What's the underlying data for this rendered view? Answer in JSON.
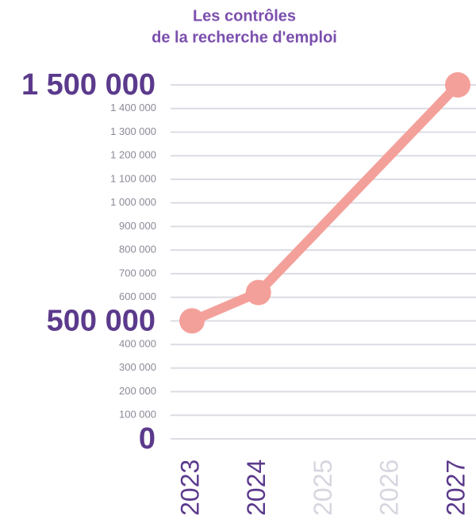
{
  "chart_data": {
    "type": "line",
    "title": [
      "Les contrôles",
      "de la recherche d'emploi"
    ],
    "x": [
      2023,
      2024,
      2027
    ],
    "series": [
      {
        "color": "#f4a09a",
        "values": [
          500000,
          620000,
          1500000
        ]
      }
    ],
    "xlim": [
      2023,
      2027
    ],
    "xticks": [
      2023,
      2024,
      2025,
      2026,
      2027
    ],
    "xtick_colors": [
      "#5b3a8c",
      "#5b3a8c",
      "#d6d6e0",
      "#d6d6e0",
      "#5b3a8c"
    ],
    "ylim": [
      0,
      1500000
    ],
    "yticks": [
      {
        "value": 0,
        "label": "0"
      },
      {
        "value": 100000,
        "label": "100 000"
      },
      {
        "value": 200000,
        "label": "200 000"
      },
      {
        "value": 300000,
        "label": "300 000"
      },
      {
        "value": 400000,
        "label": "400 000"
      },
      {
        "value": 500000,
        "label": "500 000"
      },
      {
        "value": 600000,
        "label": "600 000"
      },
      {
        "value": 700000,
        "label": "700 000"
      },
      {
        "value": 800000,
        "label": "800 000"
      },
      {
        "value": 900000,
        "label": "900 000"
      },
      {
        "value": 1000000,
        "label": "1 000 000"
      },
      {
        "value": 1100000,
        "label": "1 100 000"
      },
      {
        "value": 1200000,
        "label": "1 200 000"
      },
      {
        "value": 1300000,
        "label": "1 300 000"
      },
      {
        "value": 1400000,
        "label": "1 400 000"
      },
      {
        "value": 1500000,
        "label": "1 500 000"
      }
    ],
    "ytick_emphasis": [
      true,
      false,
      false,
      false,
      false,
      true,
      false,
      false,
      false,
      false,
      false,
      false,
      false,
      false,
      false,
      true
    ],
    "grid": true
  }
}
